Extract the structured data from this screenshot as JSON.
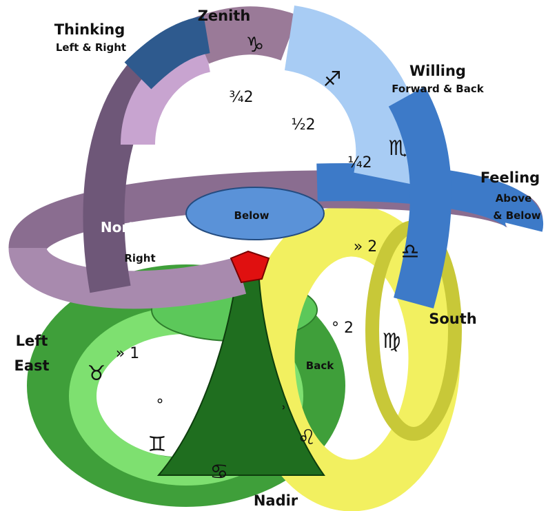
{
  "labels": {
    "zenith": "Zenith",
    "thinking": "Thinking",
    "thinking_sub": "Left & Right",
    "willing": "Willing",
    "willing_sub": "Forward & Back",
    "feeling": "Feeling",
    "feeling_sub1": "Above",
    "feeling_sub2": "& Below",
    "north": "North",
    "right": "Right",
    "below": "Below",
    "south": "South",
    "left": "Left",
    "east": "East",
    "back": "Back",
    "nadir": "Nadir"
  },
  "marks": {
    "capricorn": "♑",
    "sagittarius": "♐",
    "scorpio": "♏",
    "libra": "♎",
    "virgo": "♍",
    "leo": "♌",
    "cancer": "♋",
    "gemini": "♊",
    "taurus": "♉",
    "three_quarter": "¾2",
    "half": "½2",
    "quarter": "¼2",
    "south_step": "» 2",
    "virgo_step": "° 2",
    "east_step": "» 1",
    "gemini_step": "°",
    "leo_step": "˒"
  }
}
